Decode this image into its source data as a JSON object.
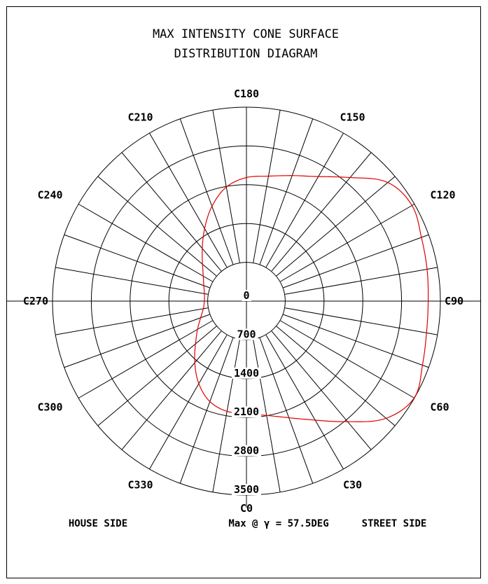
{
  "chart_data": {
    "type": "polar",
    "title_lines": [
      "MAX INTENSITY CONE SURFACE",
      "DISTRIBUTION DIAGRAM"
    ],
    "radial_ticks": [
      0,
      700,
      1400,
      2100,
      2800,
      3500
    ],
    "rmax": 3500,
    "angle_labels": [
      {
        "label": "C0",
        "angle": 0
      },
      {
        "label": "C30",
        "angle": 30
      },
      {
        "label": "C60",
        "angle": 60
      },
      {
        "label": "C90",
        "angle": 90
      },
      {
        "label": "C120",
        "angle": 120
      },
      {
        "label": "C150",
        "angle": 150
      },
      {
        "label": "C180",
        "angle": 180
      },
      {
        "label": "C210",
        "angle": 210
      },
      {
        "label": "C240",
        "angle": 240
      },
      {
        "label": "C270",
        "angle": 270
      },
      {
        "label": "C300",
        "angle": 300
      },
      {
        "label": "C330",
        "angle": 330
      }
    ],
    "spoke_step_deg": 10,
    "series": [
      {
        "color": "#e00000",
        "angles": [
          0,
          10,
          20,
          30,
          40,
          50,
          60,
          70,
          80,
          90,
          100,
          110,
          120,
          130,
          140,
          150,
          160,
          170,
          180,
          190,
          200,
          210,
          220,
          230,
          240,
          250,
          260,
          270,
          280,
          290,
          300,
          310,
          320,
          330,
          340,
          350
        ],
        "values": [
          2030,
          2095,
          2240,
          2480,
          2840,
          3290,
          3495,
          3380,
          3300,
          3280,
          3310,
          3360,
          3450,
          3330,
          2910,
          2595,
          2410,
          2290,
          2230,
          2090,
          1820,
          1510,
          1240,
          1035,
          900,
          820,
          770,
          760,
          790,
          880,
          1020,
          1200,
          1450,
          1720,
          1930,
          2020
        ]
      }
    ]
  },
  "footer": {
    "left": "HOUSE SIDE",
    "center": "Max @ γ = 57.5DEG",
    "right": "STREET SIDE"
  }
}
